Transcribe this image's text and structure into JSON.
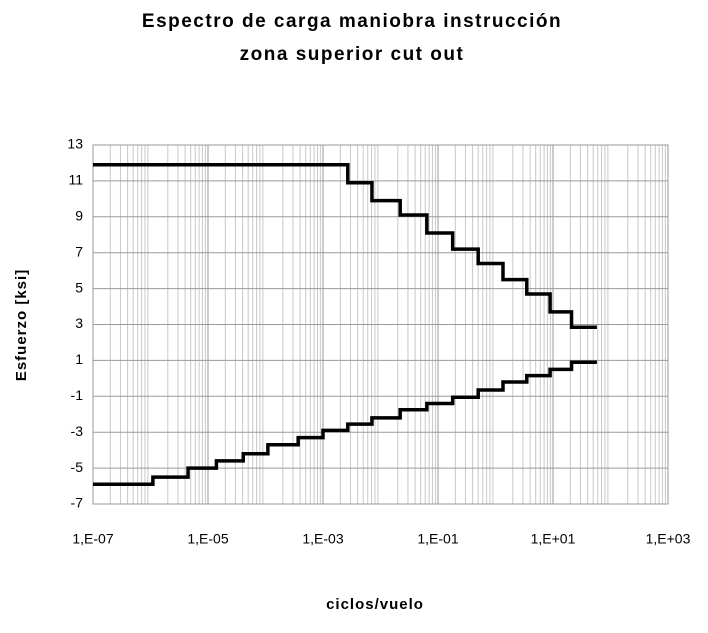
{
  "chart_data": {
    "type": "line",
    "drawstyle": "steps-post",
    "title": [
      "Espectro de carga maniobra instrucción",
      "zona superior cut out"
    ],
    "xlabel": "ciclos/vuelo",
    "ylabel": "Esfuerzo [ksi]",
    "xscale": "log",
    "xlim": [
      1e-07,
      1000
    ],
    "ylim": [
      -7,
      13
    ],
    "xticks": [
      {
        "value": 1e-07,
        "label": "1,E-07"
      },
      {
        "value": 1e-05,
        "label": "1,E-05"
      },
      {
        "value": 0.001,
        "label": "1,E-03"
      },
      {
        "value": 0.1,
        "label": "1,E-01"
      },
      {
        "value": 10,
        "label": "1,E+01"
      },
      {
        "value": 1000,
        "label": "1,E+03"
      }
    ],
    "yticks": [
      13,
      11,
      9,
      7,
      5,
      3,
      1,
      -1,
      -3,
      -5,
      -7
    ],
    "grid": true,
    "minor_grid": true,
    "series": [
      {
        "color": "#000000",
        "x": [
          1e-07,
          0.0027,
          0.0071,
          0.022,
          0.064,
          0.18,
          0.5,
          1.35,
          3.5,
          8.9,
          21,
          58
        ],
        "values": [
          11.9,
          10.9,
          9.9,
          9.1,
          8.1,
          7.2,
          6.4,
          5.5,
          4.7,
          3.7,
          2.85,
          2.85
        ]
      },
      {
        "color": "#000000",
        "x": [
          1e-07,
          1.1e-06,
          4.5e-06,
          1.4e-05,
          4.1e-05,
          0.00011,
          0.00037,
          0.001,
          0.0027,
          0.0071,
          0.022,
          0.064,
          0.18,
          0.5,
          1.35,
          3.5,
          8.9,
          21,
          58
        ],
        "values": [
          -5.9,
          -5.5,
          -5.0,
          -4.6,
          -4.2,
          -3.7,
          -3.3,
          -2.9,
          -2.55,
          -2.2,
          -1.75,
          -1.4,
          -1.05,
          -0.65,
          -0.2,
          0.15,
          0.5,
          0.9,
          0.9
        ]
      }
    ]
  }
}
